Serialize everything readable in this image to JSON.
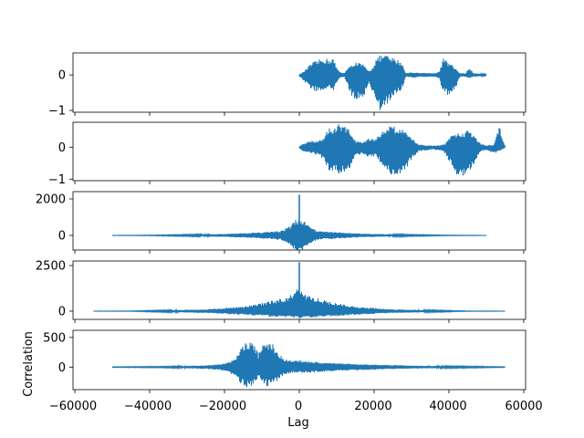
{
  "figure": {
    "xlabel": "Lag",
    "ylabel": "Correlation",
    "xticks": [
      "−60000",
      "−40000",
      "−20000",
      "0",
      "20000",
      "40000",
      "60000"
    ]
  },
  "colors": {
    "trace": "#1f77b4",
    "axes": "#000000",
    "background": "#ffffff"
  },
  "chart_data": [
    {
      "type": "line",
      "panel": "signal-1",
      "x_range": [
        0,
        50000
      ],
      "ylim": [
        -1.05,
        0.62
      ],
      "yticks": [
        "0",
        "−1"
      ],
      "envelope_x": [
        0,
        1000,
        2500,
        3500,
        5000,
        6500,
        8000,
        9000,
        10000,
        11000,
        12000,
        13500,
        15000,
        17000,
        18500,
        19500,
        20500,
        21500,
        23000,
        24500,
        26000,
        27500,
        28500,
        30000,
        32000,
        34000,
        36000,
        37500,
        38500,
        40000,
        41500,
        43000,
        44500,
        45500,
        46500,
        47500,
        48500,
        50000
      ],
      "envelope_upper": [
        0.02,
        0.08,
        0.25,
        0.35,
        0.42,
        0.48,
        0.45,
        0.5,
        0.2,
        0.08,
        0.06,
        0.25,
        0.38,
        0.3,
        0.12,
        0.2,
        0.45,
        0.55,
        0.58,
        0.5,
        0.45,
        0.35,
        0.05,
        0.08,
        0.06,
        0.06,
        0.05,
        0.1,
        0.48,
        0.35,
        0.22,
        0.05,
        0.05,
        0.22,
        0.05,
        0.05,
        0.03,
        0.02
      ],
      "envelope_lower": [
        -0.05,
        -0.15,
        -0.35,
        -0.42,
        -0.5,
        -0.45,
        -0.4,
        -0.55,
        -0.2,
        -0.08,
        -0.06,
        -0.5,
        -0.75,
        -0.7,
        -0.25,
        -0.45,
        -0.9,
        -1.02,
        -0.95,
        -0.7,
        -0.55,
        -0.4,
        -0.05,
        -0.08,
        -0.06,
        -0.06,
        -0.05,
        -0.1,
        -0.55,
        -0.58,
        -0.45,
        -0.05,
        -0.05,
        -0.1,
        -0.05,
        -0.05,
        -0.03,
        -0.02
      ]
    },
    {
      "type": "line",
      "panel": "signal-2",
      "x_range": [
        0,
        55000
      ],
      "ylim": [
        -1.05,
        0.78
      ],
      "yticks": [
        "0",
        "−1"
      ],
      "envelope_x": [
        0,
        1500,
        3000,
        5000,
        6500,
        8000,
        9000,
        10500,
        12000,
        13500,
        15000,
        17000,
        19000,
        20500,
        22000,
        24000,
        25500,
        27000,
        28500,
        30000,
        32000,
        34000,
        36000,
        37500,
        39000,
        40500,
        42000,
        44000,
        45500,
        47000,
        48500,
        50000,
        52000,
        53500,
        55000
      ],
      "envelope_upper": [
        0.03,
        0.15,
        0.2,
        0.22,
        0.3,
        0.7,
        0.55,
        0.72,
        0.65,
        0.55,
        0.2,
        0.15,
        0.3,
        0.25,
        0.5,
        0.72,
        0.65,
        0.6,
        0.55,
        0.3,
        0.08,
        0.06,
        0.05,
        0.06,
        0.1,
        0.35,
        0.45,
        0.48,
        0.55,
        0.35,
        0.12,
        0.05,
        0.08,
        0.7,
        0.02
      ],
      "envelope_lower": [
        -0.05,
        -0.15,
        -0.2,
        -0.25,
        -0.4,
        -0.8,
        -0.75,
        -0.85,
        -0.8,
        -0.7,
        -0.3,
        -0.2,
        -0.35,
        -0.3,
        -0.55,
        -0.9,
        -0.95,
        -0.85,
        -0.7,
        -0.4,
        -0.12,
        -0.1,
        -0.08,
        -0.1,
        -0.2,
        -0.55,
        -0.85,
        -0.95,
        -0.75,
        -0.45,
        -0.15,
        -0.1,
        -0.2,
        -0.15,
        -0.02
      ]
    },
    {
      "type": "line",
      "panel": "autocorrelation-1",
      "x_range": [
        -50000,
        50000
      ],
      "ylim": [
        -800,
        2400
      ],
      "yticks": [
        "2000",
        "0"
      ],
      "peak": {
        "x": 0,
        "max": 2230,
        "min": -700
      },
      "envelope_x": [
        -50000,
        -40000,
        -30000,
        -20000,
        -12000,
        -8000,
        -5000,
        -3000,
        -2000,
        -1000,
        1000,
        2000,
        3000,
        5000,
        8000,
        12000,
        20000,
        30000,
        40000,
        50000
      ],
      "envelope_upper": [
        5,
        15,
        40,
        80,
        150,
        200,
        250,
        450,
        600,
        900,
        900,
        600,
        450,
        250,
        200,
        150,
        80,
        40,
        15,
        5
      ],
      "envelope_lower": [
        -5,
        -15,
        -40,
        -80,
        -150,
        -200,
        -250,
        -450,
        -600,
        -900,
        -900,
        -600,
        -450,
        -250,
        -200,
        -150,
        -80,
        -40,
        -15,
        -5
      ]
    },
    {
      "type": "line",
      "panel": "autocorrelation-2",
      "x_range": [
        -55000,
        55000
      ],
      "ylim": [
        -450,
        2750
      ],
      "yticks": [
        "2500",
        "0"
      ],
      "peak": {
        "x": 0,
        "max": 2680,
        "min": -380
      },
      "envelope_x": [
        -55000,
        -45000,
        -35000,
        -25000,
        -15000,
        -10000,
        -5000,
        -2000,
        -1000,
        1000,
        2000,
        5000,
        10000,
        15000,
        25000,
        35000,
        45000,
        55000
      ],
      "envelope_upper": [
        5,
        10,
        50,
        100,
        250,
        450,
        700,
        900,
        1200,
        1200,
        900,
        700,
        450,
        250,
        100,
        50,
        10,
        5
      ],
      "envelope_lower": [
        -5,
        -10,
        -50,
        -100,
        -200,
        -280,
        -330,
        -360,
        -380,
        -380,
        -360,
        -330,
        -280,
        -200,
        -100,
        -50,
        -10,
        -5
      ]
    },
    {
      "type": "line",
      "panel": "cross-correlation",
      "x_range": [
        -50000,
        55000
      ],
      "xlim": [
        -60000,
        60000
      ],
      "ylim": [
        -380,
        620
      ],
      "yticks": [
        "500",
        "0"
      ],
      "envelope_x": [
        -50000,
        -35000,
        -25000,
        -20000,
        -17000,
        -15500,
        -14000,
        -12500,
        -11000,
        -10000,
        -8500,
        -7000,
        -5500,
        -4000,
        -2000,
        0,
        4000,
        8000,
        14000,
        22000,
        30000,
        40000,
        48000,
        55000
      ],
      "envelope_upper": [
        5,
        10,
        30,
        60,
        150,
        350,
        430,
        480,
        220,
        350,
        460,
        380,
        220,
        140,
        110,
        120,
        90,
        70,
        55,
        40,
        25,
        15,
        10,
        5
      ],
      "envelope_lower": [
        -5,
        -10,
        -30,
        -60,
        -150,
        -300,
        -350,
        -330,
        -180,
        -250,
        -330,
        -300,
        -200,
        -130,
        -100,
        -100,
        -90,
        -70,
        -55,
        -40,
        -25,
        -15,
        -10,
        -5
      ]
    }
  ]
}
